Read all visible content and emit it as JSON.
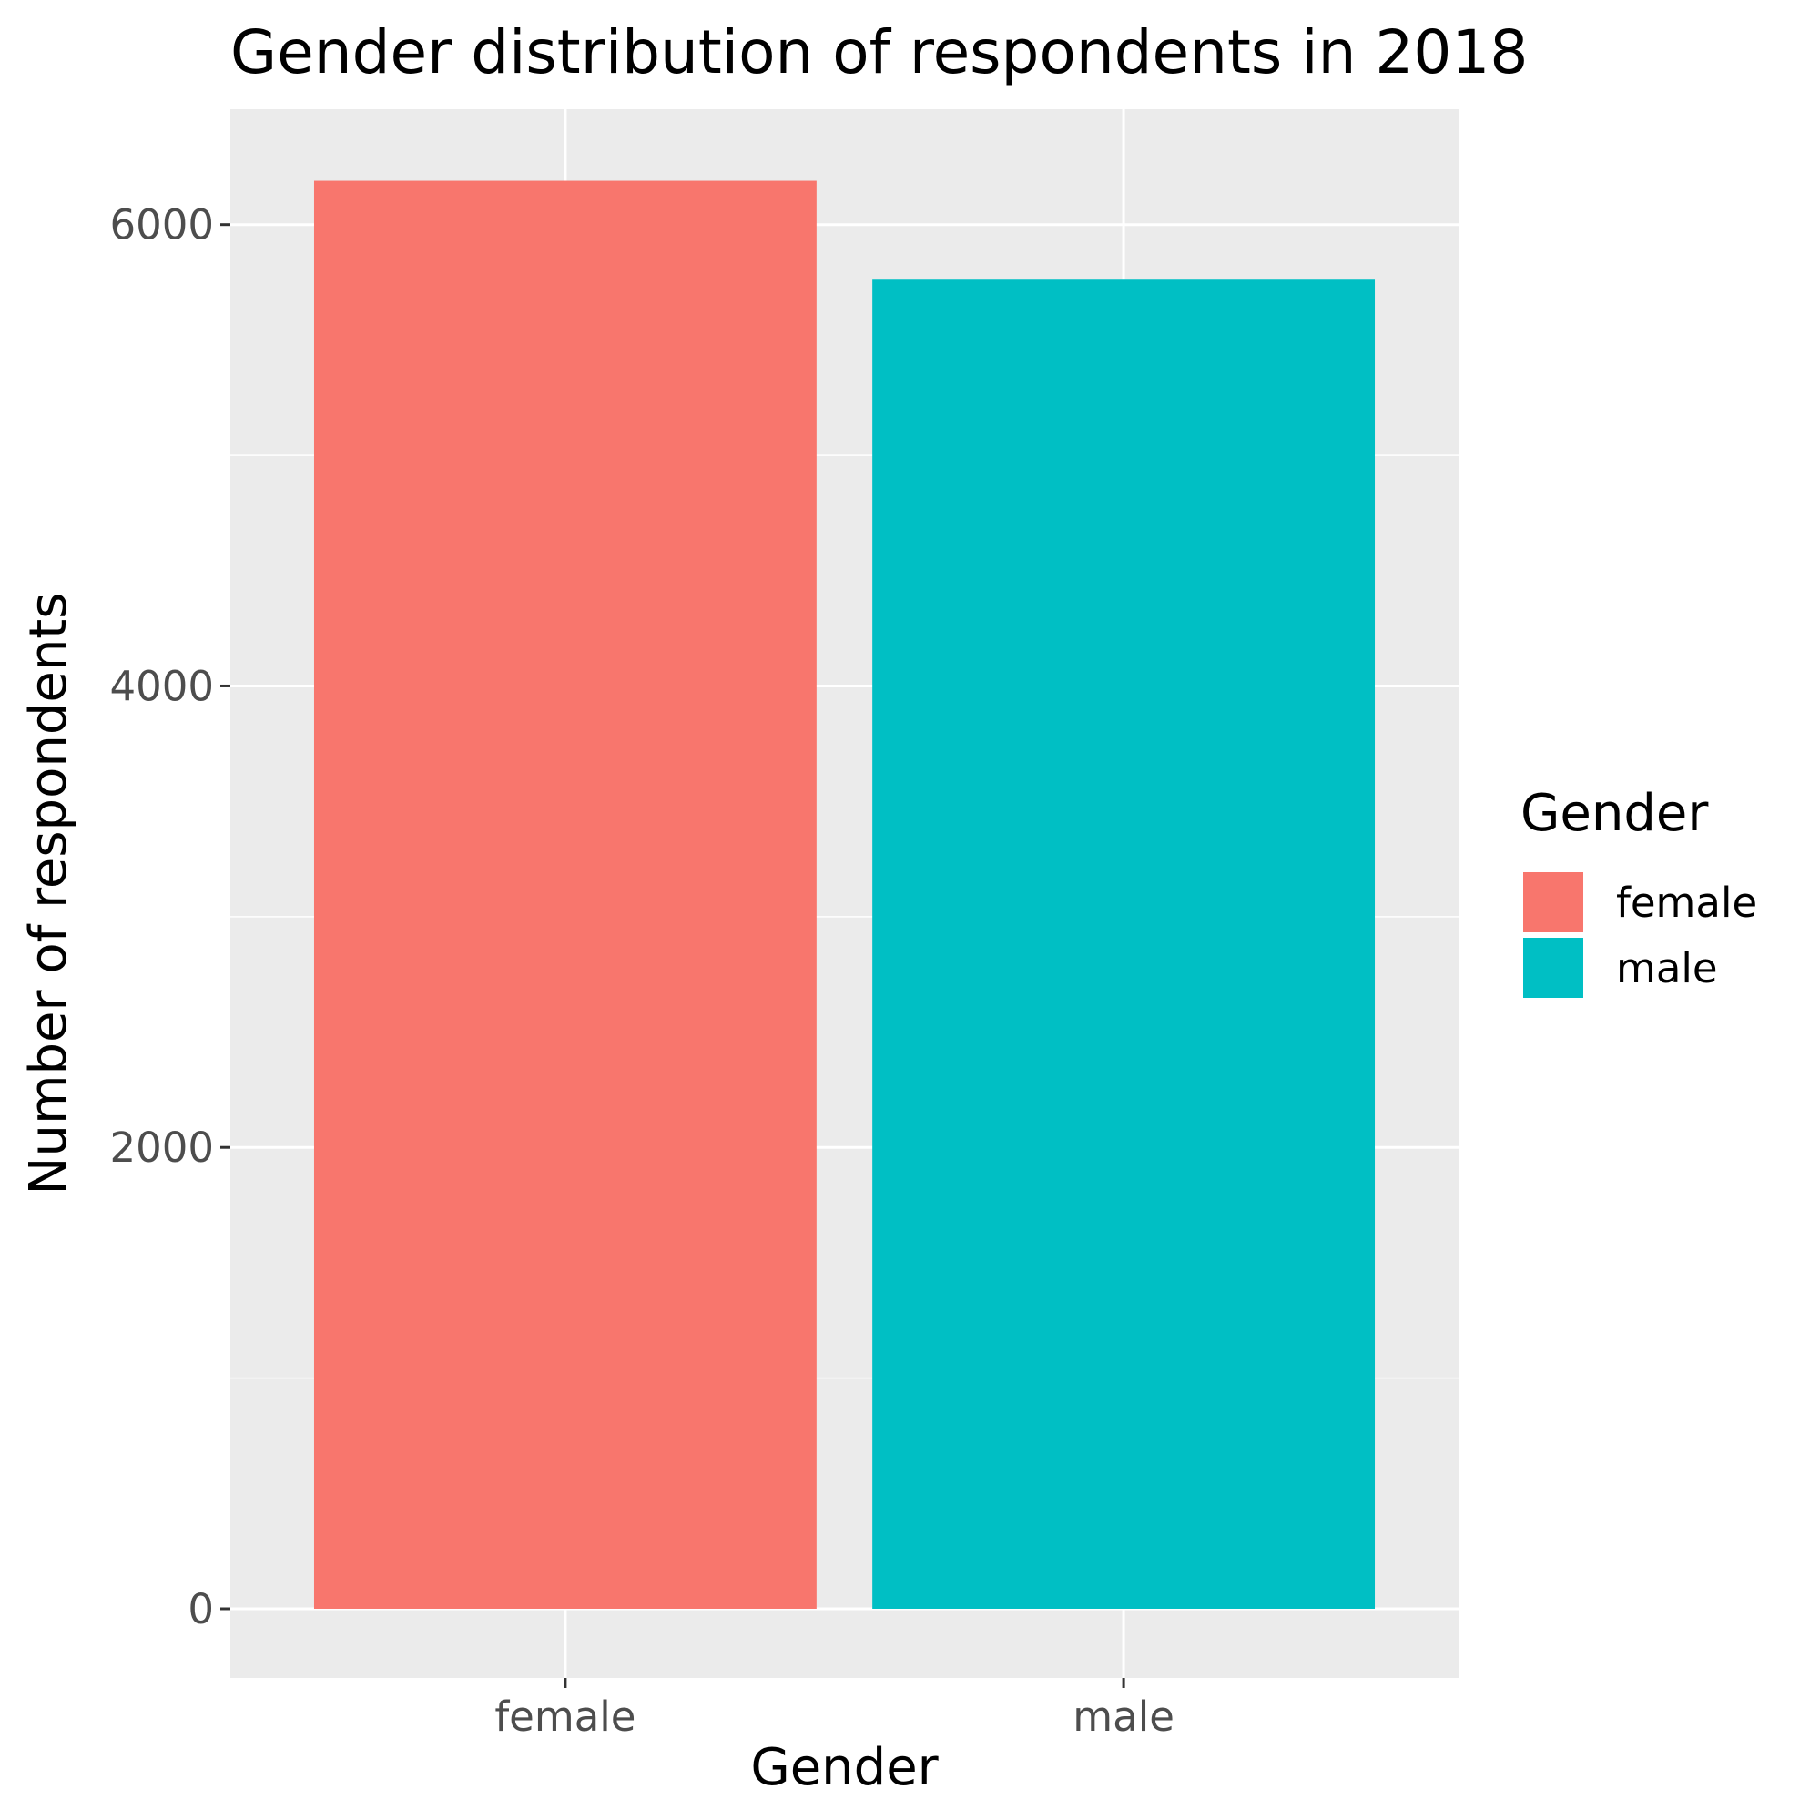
{
  "chart_data": {
    "type": "bar",
    "title": "Gender distribution of respondents in 2018",
    "xlabel": "Gender",
    "ylabel": "Number of respondents",
    "categories": [
      "female",
      "male"
    ],
    "values": [
      6190,
      5765
    ],
    "colors": [
      "#f8766d",
      "#00bfc4"
    ],
    "ylim": [
      -300,
      6500
    ],
    "yticks": [
      0,
      2000,
      4000,
      6000
    ],
    "yticks_labels": [
      "0",
      "2000",
      "4000",
      "6000"
    ],
    "grid": true,
    "legend": {
      "title": "Gender",
      "position": "right",
      "entries": [
        "female",
        "male"
      ]
    },
    "background_color": "#ebebeb",
    "grid_color": "#ffffff"
  }
}
